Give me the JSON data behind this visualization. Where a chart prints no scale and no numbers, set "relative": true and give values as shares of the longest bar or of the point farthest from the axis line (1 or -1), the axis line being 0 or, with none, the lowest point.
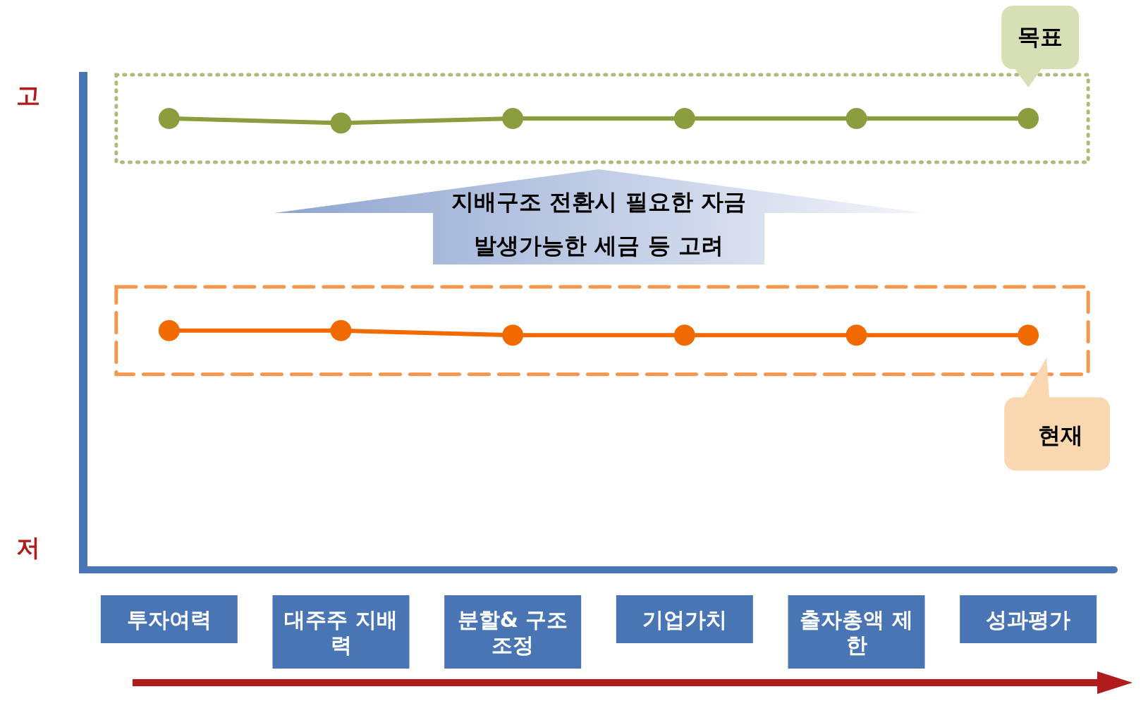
{
  "chart_data": {
    "type": "line",
    "relative": true,
    "categories": [
      "투자여력",
      "대주주 지배력",
      "분할& 구조조정",
      "기업가치",
      "출자총액 제한",
      "성과평가"
    ],
    "series": [
      {
        "name": "목표",
        "color": "#8a9e40",
        "values": [
          1,
          0.99,
          1,
          1,
          1,
          1
        ]
      },
      {
        "name": "현재",
        "color": "#f06a00",
        "values": [
          0.53,
          0.53,
          0.52,
          0.52,
          0.52,
          0.52
        ]
      }
    ],
    "annotations": [
      "고",
      "저",
      "지배구조 전환시 필요한 자금",
      "발생가능한 세금 등 고려"
    ],
    "legend": false,
    "grid": false,
    "marker": "circle",
    "line_style": "solid"
  }
}
